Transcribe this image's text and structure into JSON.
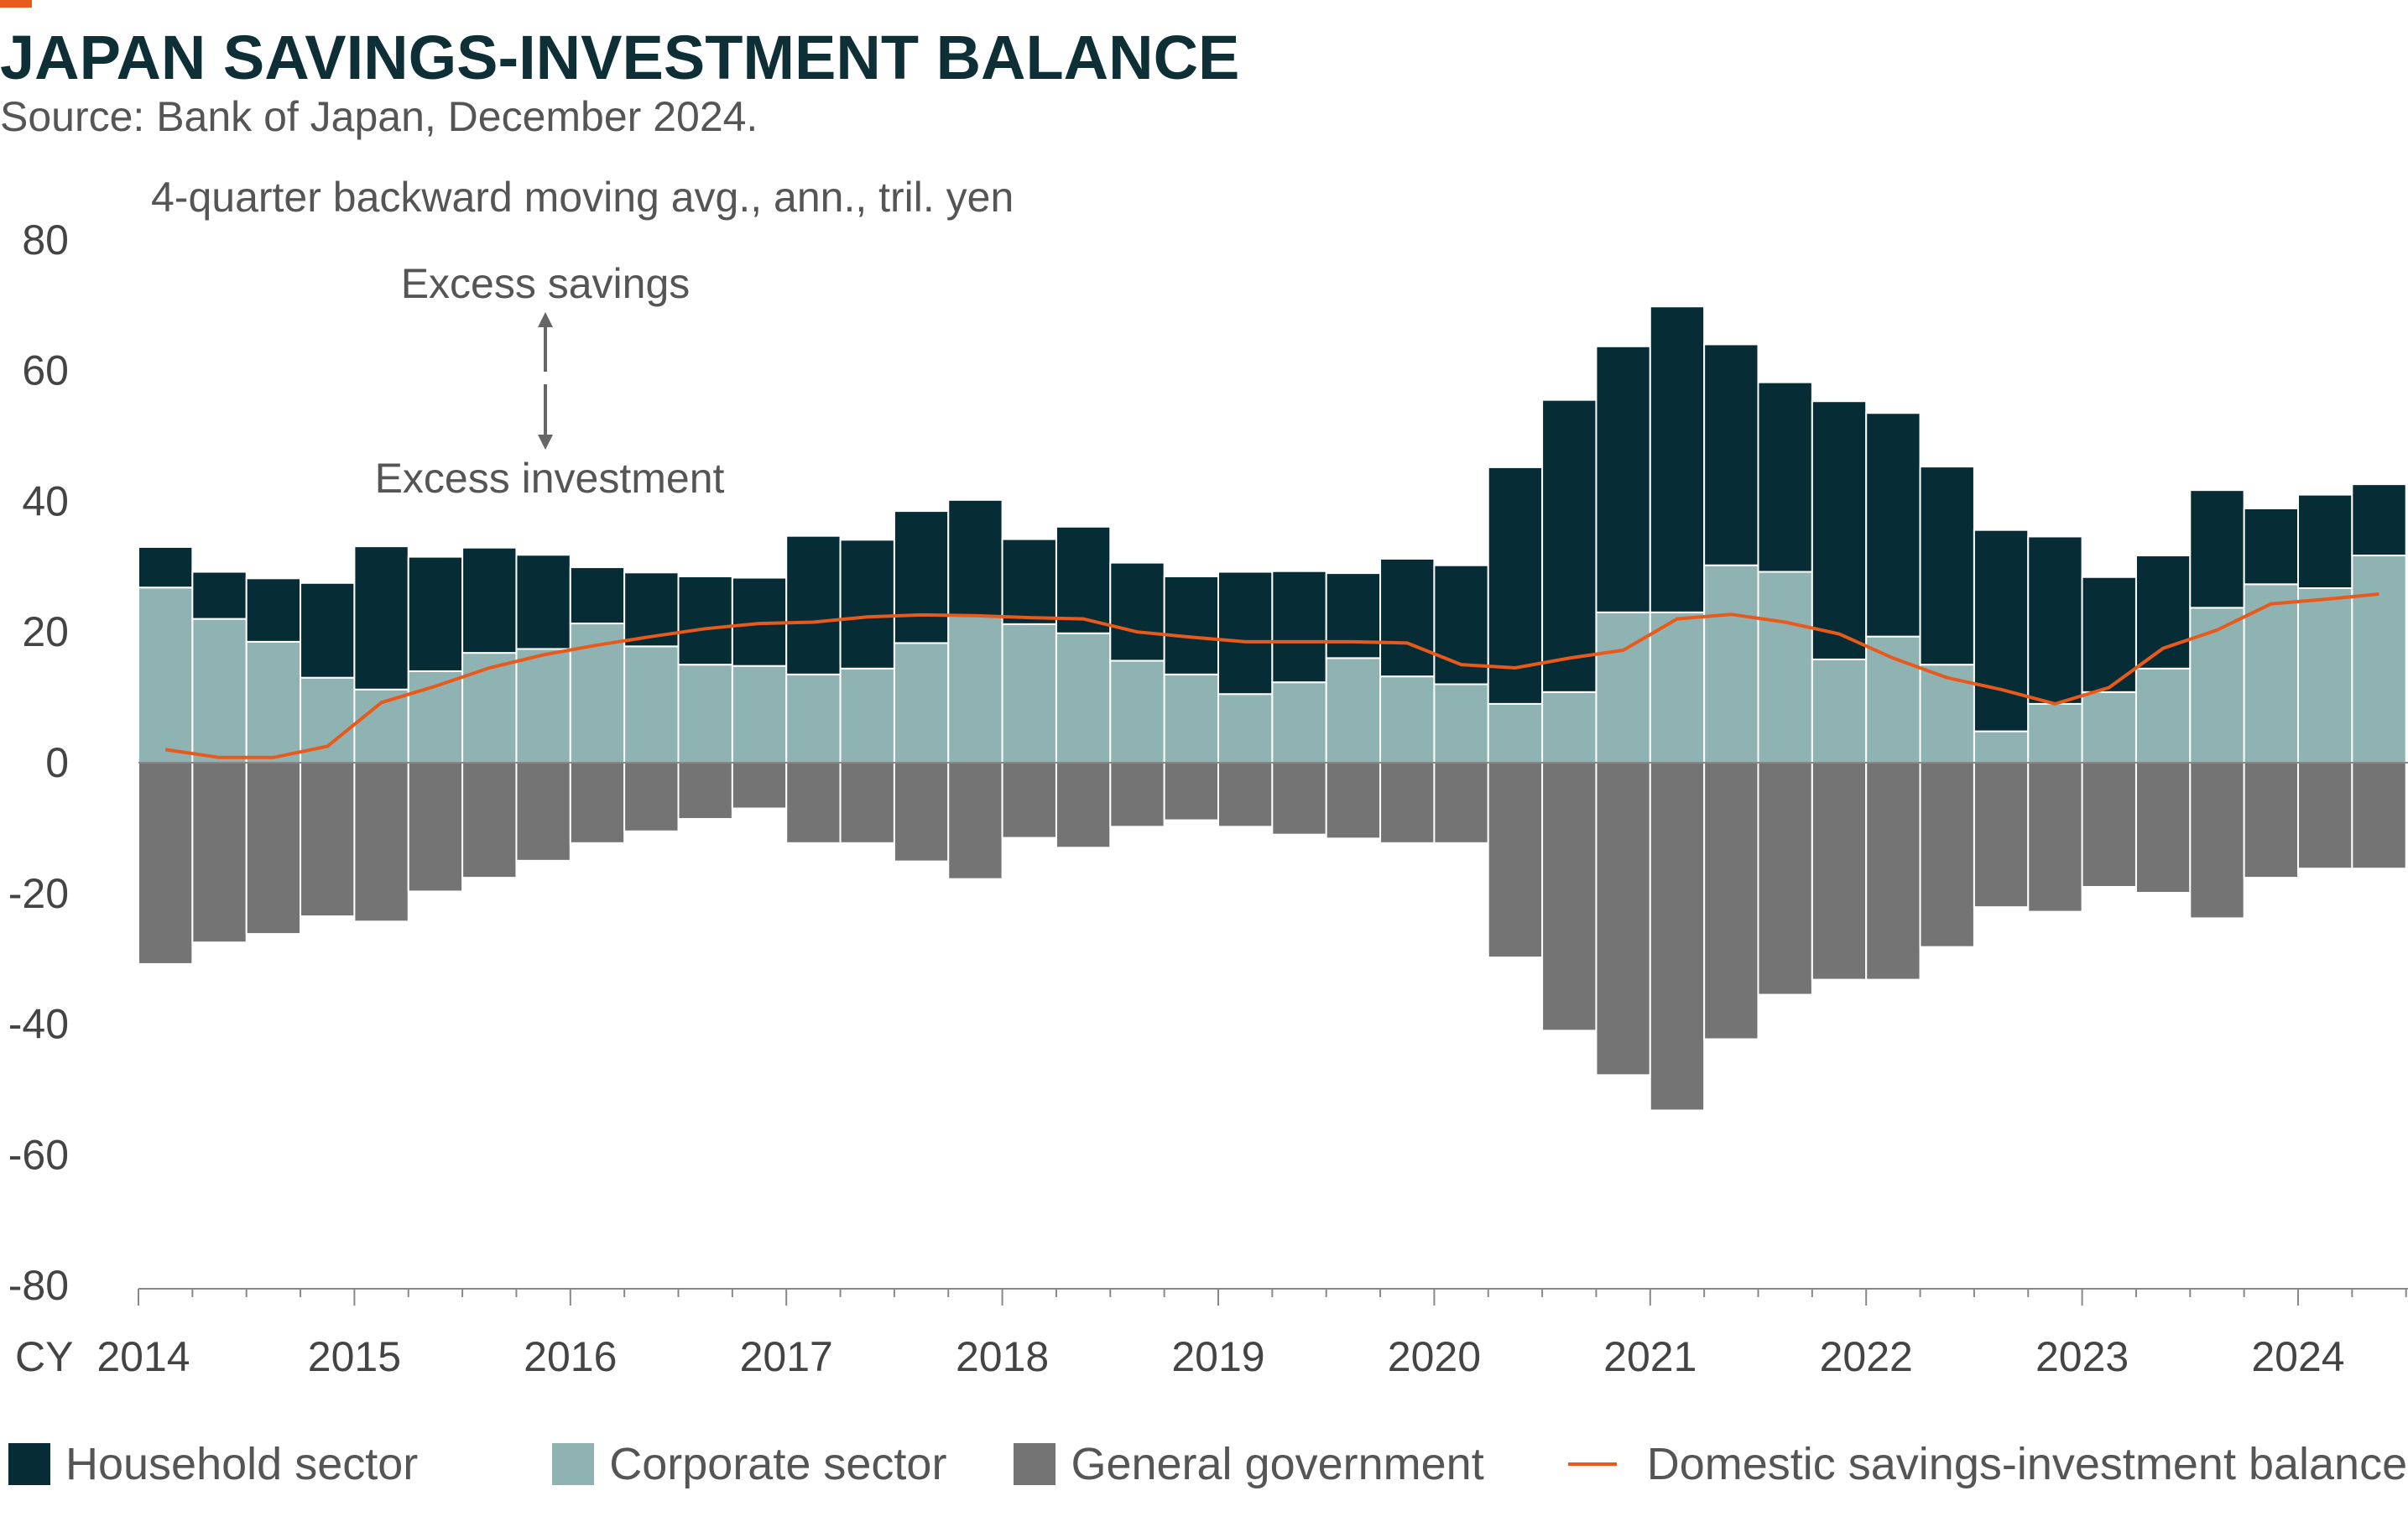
{
  "title": "JAPAN SAVINGS-INVESTMENT BALANCE",
  "subtitle": "Source: Bank of Japan, December 2024.",
  "colors": {
    "accent": "#e85a1c",
    "household": "#062c35",
    "corporate": "#8fb3b2",
    "government": "#747474",
    "balance": "#e85a1c",
    "axis": "#888888",
    "text": "#555555"
  },
  "chart_data": {
    "type": "bar",
    "stacked": true,
    "ylabel": "4-quarter backward moving avg., ann., tril. yen",
    "ylim": [
      -80,
      80
    ],
    "yticks": [
      "80",
      "60",
      "40",
      "20",
      "0",
      "-20",
      "-40",
      "-60",
      "-80"
    ],
    "xaxis_prefix": "CY",
    "xticks": [
      "2014",
      "2015",
      "2016",
      "2017",
      "2018",
      "2019",
      "2020",
      "2021",
      "2022",
      "2023",
      "2024"
    ],
    "annotations": {
      "up": "Excess savings",
      "down": "Excess investment"
    },
    "quarters": [
      "2014Q1",
      "2014Q2",
      "2014Q3",
      "2014Q4",
      "2015Q1",
      "2015Q2",
      "2015Q3",
      "2015Q4",
      "2016Q1",
      "2016Q2",
      "2016Q3",
      "2016Q4",
      "2017Q1",
      "2017Q2",
      "2017Q3",
      "2017Q4",
      "2018Q1",
      "2018Q2",
      "2018Q3",
      "2018Q4",
      "2019Q1",
      "2019Q2",
      "2019Q3",
      "2019Q4",
      "2020Q1",
      "2020Q2",
      "2020Q3",
      "2020Q4",
      "2021Q1",
      "2021Q2",
      "2021Q3",
      "2021Q4",
      "2022Q1",
      "2022Q2",
      "2022Q3",
      "2022Q4",
      "2023Q1",
      "2023Q2",
      "2023Q3",
      "2023Q4",
      "2024Q1",
      "2024Q2"
    ],
    "series": [
      {
        "name": "Corporate sector",
        "values": [
          26.8,
          22.0,
          18.5,
          13.0,
          11.2,
          14.0,
          16.8,
          17.4,
          21.3,
          17.8,
          15.0,
          14.8,
          13.5,
          14.4,
          18.3,
          22.4,
          21.2,
          19.8,
          15.6,
          13.5,
          10.5,
          12.3,
          16.0,
          13.2,
          12.0,
          9.0,
          10.8,
          23.0,
          23.0,
          30.2,
          29.2,
          15.8,
          19.3,
          15.0,
          4.8,
          9.0,
          10.8,
          14.4,
          23.7,
          27.3,
          26.7,
          31.7
        ]
      },
      {
        "name": "Household sector",
        "values": [
          6.2,
          7.2,
          9.7,
          14.5,
          21.9,
          17.5,
          16.1,
          14.4,
          8.6,
          11.3,
          13.5,
          13.5,
          21.2,
          19.7,
          20.2,
          17.8,
          13.0,
          16.3,
          15.0,
          15.0,
          18.7,
          17.0,
          13.0,
          18.0,
          18.2,
          36.2,
          44.7,
          40.7,
          46.8,
          33.8,
          29.0,
          39.5,
          34.2,
          30.3,
          30.8,
          25.6,
          17.6,
          17.3,
          18.0,
          11.6,
          14.3,
          10.9
        ]
      },
      {
        "name": "General government",
        "values": [
          -30.8,
          -27.5,
          -26.2,
          -23.5,
          -24.3,
          -19.7,
          -17.6,
          -15.0,
          -12.3,
          -10.5,
          -8.6,
          -7.0,
          -12.3,
          -12.3,
          -15.1,
          -17.8,
          -11.5,
          -13.0,
          -9.8,
          -8.8,
          -9.8,
          -11.0,
          -11.6,
          -12.3,
          -12.3,
          -29.8,
          -41.0,
          -47.8,
          -53.2,
          -42.3,
          -35.5,
          -33.2,
          -33.2,
          -28.2,
          -22.1,
          -22.8,
          -19.0,
          -19.9,
          -23.8,
          -17.6,
          -16.2,
          -16.2
        ]
      },
      {
        "name": "Domestic savings-investment balance",
        "type": "line",
        "values": [
          2.0,
          0.8,
          0.8,
          2.5,
          9.2,
          11.7,
          14.5,
          16.5,
          18.0,
          19.3,
          20.5,
          21.3,
          21.5,
          22.3,
          22.6,
          22.5,
          22.2,
          22.0,
          20.0,
          19.2,
          18.5,
          18.5,
          18.5,
          18.3,
          15.0,
          14.5,
          16.0,
          17.2,
          22.0,
          22.7,
          21.5,
          19.7,
          16.0,
          13.0,
          11.2,
          9.0,
          11.5,
          17.5,
          20.3,
          24.3,
          25.0,
          25.8
        ]
      }
    ]
  },
  "legend": [
    {
      "label": "Household sector",
      "kind": "box",
      "color": "#062c35"
    },
    {
      "label": "Corporate sector",
      "kind": "box",
      "color": "#8fb3b2"
    },
    {
      "label": "General government",
      "kind": "box",
      "color": "#747474"
    },
    {
      "label": "Domestic savings-investment balance",
      "kind": "line",
      "color": "#e85a1c"
    }
  ]
}
